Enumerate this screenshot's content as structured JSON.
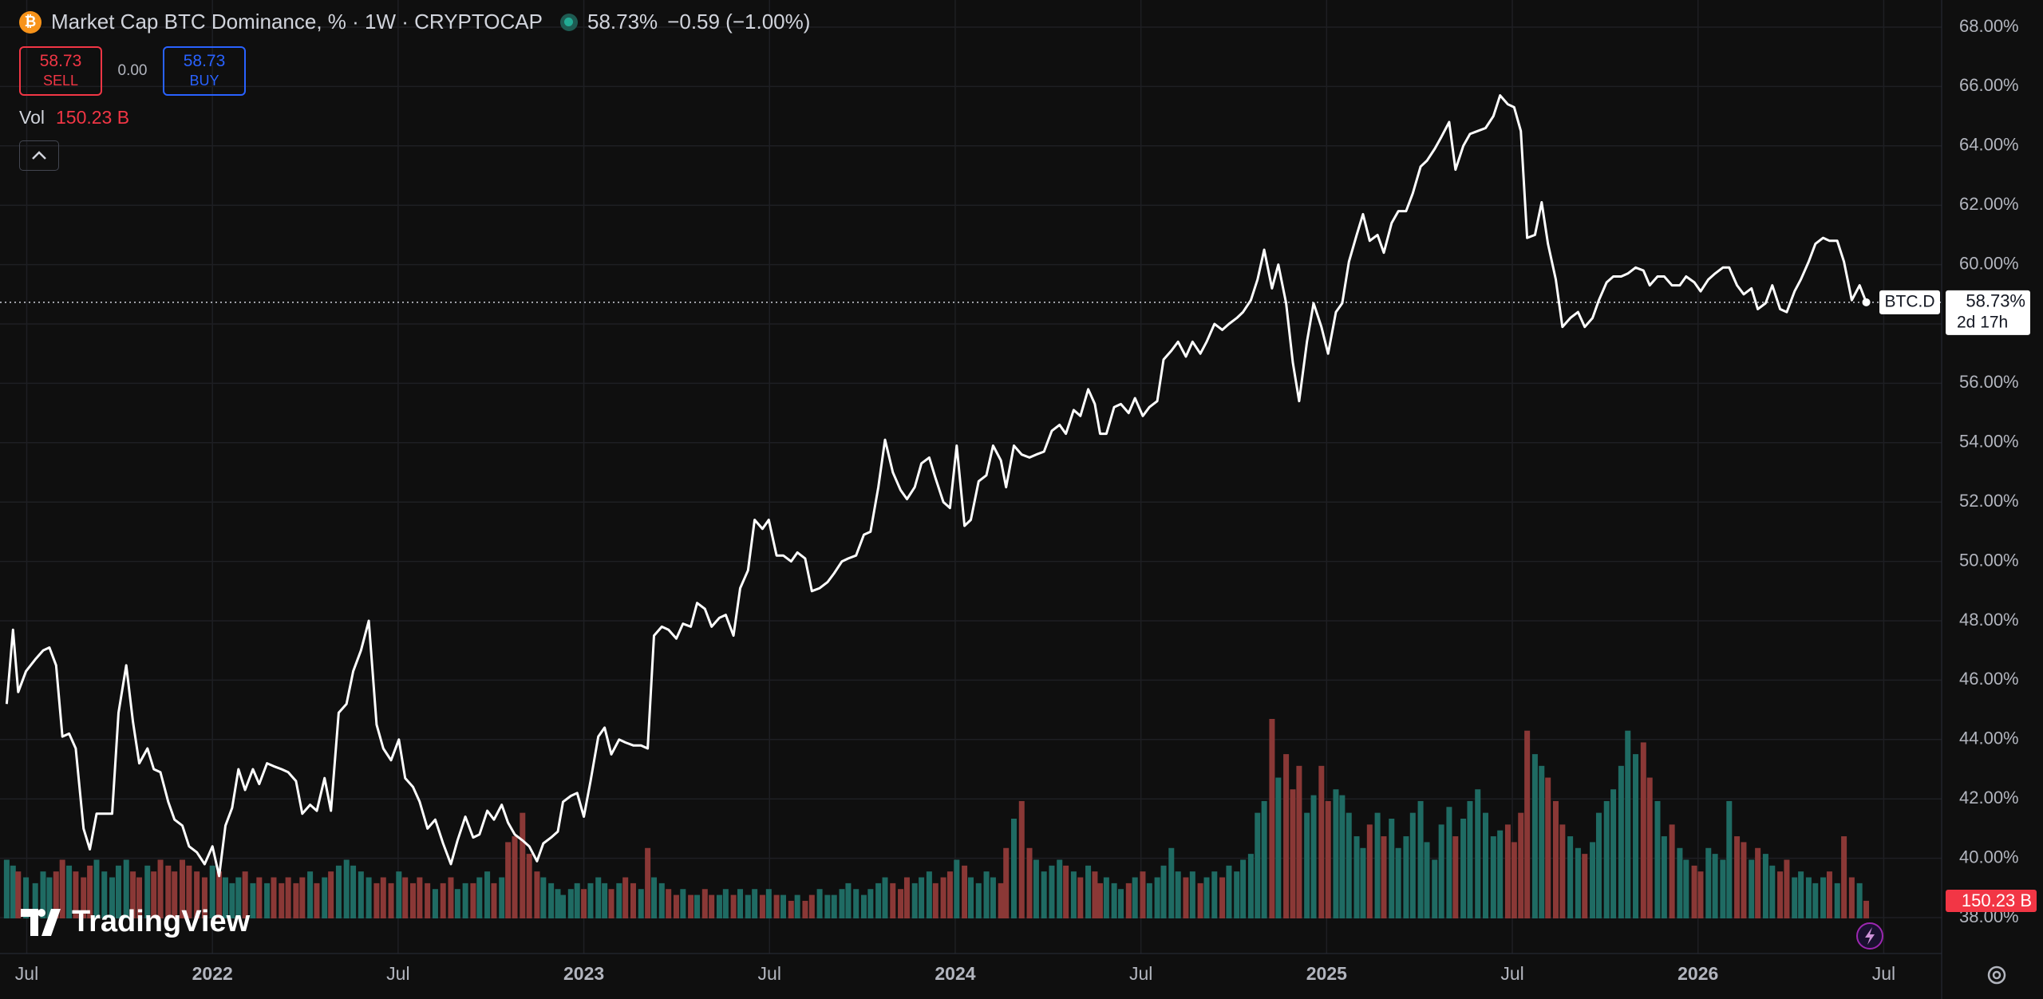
{
  "header": {
    "title": "Market Cap BTC Dominance, % · 1W · CRYPTOCAP",
    "price": "58.73%",
    "change": "−0.59 (−1.00%)",
    "sell_price": "58.73",
    "sell_label": "SELL",
    "spread": "0.00",
    "buy_price": "58.73",
    "buy_label": "BUY",
    "volume_label": "Vol",
    "volume_value": "150.23 B",
    "brand": "TradingView"
  },
  "chart_data": {
    "type": "line",
    "x": [
      2021.446,
      2021.463,
      2021.477,
      2021.498,
      2021.523,
      2021.544,
      2021.561,
      2021.579,
      2021.596,
      2021.614,
      2021.632,
      2021.653,
      2021.67,
      2021.688,
      2021.709,
      2021.73,
      2021.747,
      2021.768,
      2021.786,
      2021.803,
      2021.825,
      2021.842,
      2021.86,
      2021.881,
      2021.898,
      2021.919,
      2021.937,
      2021.958,
      2021.979,
      2022.0,
      2022.018,
      2022.035,
      2022.053,
      2022.07,
      2022.088,
      2022.109,
      2022.126,
      2022.147,
      2022.165,
      2022.186,
      2022.204,
      2022.225,
      2022.242,
      2022.263,
      2022.281,
      2022.302,
      2022.319,
      2022.34,
      2022.361,
      2022.379,
      2022.4,
      2022.421,
      2022.442,
      2022.46,
      2022.481,
      2022.502,
      2022.519,
      2022.54,
      2022.558,
      2022.579,
      2022.6,
      2022.621,
      2022.642,
      2022.66,
      2022.681,
      2022.702,
      2022.719,
      2022.74,
      2022.758,
      2022.779,
      2022.796,
      2022.814,
      2022.835,
      2022.853,
      2022.874,
      2022.891,
      2022.912,
      2022.93,
      2022.944,
      2022.965,
      2022.982,
      2023.0,
      2023.018,
      2023.039,
      2023.056,
      2023.074,
      2023.095,
      2023.112,
      2023.133,
      2023.154,
      2023.172,
      2023.189,
      2023.21,
      2023.228,
      2023.249,
      2023.267,
      2023.288,
      2023.305,
      2023.326,
      2023.344,
      2023.365,
      2023.382,
      2023.403,
      2023.421,
      2023.442,
      2023.46,
      2023.481,
      2023.498,
      2023.519,
      2023.537,
      2023.558,
      2023.575,
      2023.596,
      2023.614,
      2023.635,
      2023.656,
      2023.674,
      2023.695,
      2023.712,
      2023.733,
      2023.754,
      2023.772,
      2023.793,
      2023.811,
      2023.832,
      2023.853,
      2023.87,
      2023.891,
      2023.909,
      2023.93,
      2023.947,
      2023.968,
      2023.986,
      2024.004,
      2024.025,
      2024.042,
      2024.063,
      2024.084,
      2024.102,
      2024.123,
      2024.137,
      2024.158,
      2024.179,
      2024.2,
      2024.218,
      2024.239,
      2024.26,
      2024.281,
      2024.298,
      2024.319,
      2024.337,
      2024.358,
      2024.376,
      2024.39,
      2024.407,
      2024.428,
      2024.446,
      2024.467,
      2024.484,
      2024.505,
      2024.523,
      2024.544,
      2024.561,
      2024.582,
      2024.6,
      2024.621,
      2024.639,
      2024.66,
      2024.677,
      2024.698,
      2024.719,
      2024.737,
      2024.758,
      2024.775,
      2024.796,
      2024.814,
      2024.832,
      2024.853,
      2024.87,
      2024.891,
      2024.909,
      2024.926,
      2024.947,
      2024.965,
      2024.986,
      2025.004,
      2025.025,
      2025.042,
      2025.06,
      2025.081,
      2025.098,
      2025.116,
      2025.137,
      2025.154,
      2025.175,
      2025.193,
      2025.214,
      2025.232,
      2025.253,
      2025.27,
      2025.291,
      2025.309,
      2025.33,
      2025.347,
      2025.368,
      2025.386,
      2025.407,
      2025.428,
      2025.449,
      2025.467,
      2025.488,
      2025.505,
      2025.523,
      2025.54,
      2025.561,
      2025.579,
      2025.596,
      2025.617,
      2025.635,
      2025.656,
      2025.677,
      2025.695,
      2025.716,
      2025.733,
      2025.754,
      2025.772,
      2025.793,
      2025.811,
      2025.832,
      2025.853,
      2025.87,
      2025.891,
      2025.909,
      2025.93,
      2025.951,
      2025.968,
      2025.99,
      2026.007,
      2026.028,
      2026.046,
      2026.067,
      2026.084,
      2026.105,
      2026.123,
      2026.144,
      2026.161,
      2026.182,
      2026.2,
      2026.221,
      2026.239,
      2026.26,
      2026.277,
      2026.298,
      2026.316,
      2026.337,
      2026.354,
      2026.375,
      2026.393,
      2026.414,
      2026.435,
      2026.453
    ],
    "series": [
      {
        "name": "BTC.D",
        "color": "#ffffff",
        "values": [
          45.2,
          47.7,
          45.6,
          46.3,
          46.7,
          47.0,
          47.1,
          46.5,
          44.1,
          44.2,
          43.7,
          41.0,
          40.3,
          41.5,
          41.5,
          41.5,
          44.9,
          46.5,
          44.6,
          43.2,
          43.7,
          43.0,
          42.9,
          41.9,
          41.3,
          41.1,
          40.4,
          40.2,
          39.8,
          40.4,
          39.4,
          41.1,
          41.7,
          43.0,
          42.3,
          43.0,
          42.5,
          43.2,
          43.1,
          43.0,
          42.9,
          42.6,
          41.5,
          41.8,
          41.6,
          42.7,
          41.6,
          44.9,
          45.2,
          46.3,
          47.0,
          48.0,
          44.5,
          43.7,
          43.3,
          44.0,
          42.7,
          42.4,
          41.9,
          41.0,
          41.3,
          40.5,
          39.8,
          40.6,
          41.4,
          40.7,
          40.8,
          41.6,
          41.3,
          41.8,
          41.2,
          40.8,
          40.6,
          40.4,
          39.9,
          40.5,
          40.7,
          40.9,
          41.9,
          42.1,
          42.2,
          41.4,
          42.6,
          44.1,
          44.4,
          43.5,
          44.0,
          43.9,
          43.8,
          43.8,
          43.7,
          47.5,
          47.8,
          47.7,
          47.4,
          47.9,
          47.8,
          48.6,
          48.4,
          47.8,
          48.1,
          48.2,
          47.5,
          49.1,
          49.7,
          51.4,
          51.1,
          51.4,
          50.2,
          50.2,
          50.0,
          50.3,
          50.1,
          49.0,
          49.1,
          49.3,
          49.6,
          50.0,
          50.1,
          50.2,
          50.9,
          51.0,
          52.5,
          54.1,
          53.0,
          52.4,
          52.1,
          52.5,
          53.3,
          53.5,
          52.8,
          52.0,
          51.8,
          53.9,
          51.2,
          51.4,
          52.7,
          52.9,
          53.9,
          53.4,
          52.5,
          53.9,
          53.6,
          53.5,
          53.6,
          53.7,
          54.4,
          54.6,
          54.3,
          55.1,
          54.9,
          55.8,
          55.3,
          54.3,
          54.3,
          55.2,
          55.3,
          55.0,
          55.5,
          54.9,
          55.2,
          55.4,
          56.8,
          57.1,
          57.4,
          56.9,
          57.4,
          57.0,
          57.4,
          58.0,
          57.8,
          58.0,
          58.2,
          58.4,
          58.8,
          59.5,
          60.5,
          59.2,
          60.0,
          58.7,
          56.7,
          55.4,
          57.4,
          58.7,
          57.9,
          57.0,
          58.4,
          58.7,
          60.1,
          61.0,
          61.7,
          60.8,
          61.0,
          60.4,
          61.4,
          61.8,
          61.8,
          62.4,
          63.3,
          63.5,
          63.9,
          64.3,
          64.8,
          63.2,
          64.0,
          64.4,
          64.5,
          64.6,
          65.0,
          65.7,
          65.4,
          65.3,
          64.5,
          60.9,
          61.0,
          62.1,
          60.7,
          59.5,
          57.9,
          58.2,
          58.4,
          57.9,
          58.2,
          58.8,
          59.4,
          59.6,
          59.6,
          59.7,
          59.9,
          59.8,
          59.3,
          59.6,
          59.6,
          59.3,
          59.3,
          59.6,
          59.4,
          59.1,
          59.5,
          59.7,
          59.9,
          59.9,
          59.3,
          59.0,
          59.2,
          58.5,
          58.7,
          59.3,
          58.5,
          58.4,
          59.1,
          59.5,
          60.1,
          60.7,
          60.9,
          60.8,
          60.8,
          60.1,
          58.8,
          59.3,
          58.73
        ]
      },
      {
        "name": "Vol",
        "type": "bar",
        "up_color": "#1f6b63",
        "down_color": "#8a3836",
        "values": [
          500,
          450,
          400,
          350,
          300,
          400,
          350,
          400,
          500,
          450,
          400,
          350,
          450,
          500,
          400,
          350,
          450,
          500,
          400,
          350,
          450,
          400,
          500,
          450,
          400,
          500,
          450,
          400,
          350,
          450,
          400,
          350,
          300,
          350,
          400,
          300,
          350,
          300,
          350,
          300,
          350,
          300,
          350,
          400,
          300,
          350,
          400,
          450,
          500,
          450,
          400,
          350,
          300,
          350,
          300,
          400,
          350,
          300,
          350,
          300,
          250,
          300,
          350,
          250,
          300,
          300,
          350,
          400,
          300,
          350,
          650,
          700,
          900,
          550,
          400,
          350,
          300,
          250,
          200,
          250,
          300,
          250,
          300,
          350,
          300,
          250,
          300,
          350,
          300,
          250,
          600,
          350,
          300,
          250,
          200,
          250,
          200,
          200,
          250,
          200,
          200,
          250,
          200,
          250,
          200,
          250,
          200,
          250,
          200,
          200,
          150,
          200,
          150,
          200,
          250,
          200,
          200,
          250,
          300,
          250,
          200,
          250,
          300,
          350,
          300,
          250,
          350,
          300,
          350,
          400,
          300,
          350,
          400,
          500,
          450,
          350,
          300,
          400,
          350,
          300,
          600,
          850,
          1000,
          600,
          500,
          400,
          450,
          500,
          450,
          400,
          350,
          450,
          400,
          300,
          350,
          300,
          250,
          300,
          350,
          400,
          300,
          350,
          450,
          600,
          400,
          350,
          400,
          300,
          350,
          400,
          350,
          450,
          400,
          500,
          550,
          900,
          1000,
          1700,
          1200,
          1400,
          1100,
          1300,
          900,
          1050,
          1300,
          1000,
          1100,
          1050,
          900,
          700,
          600,
          800,
          900,
          700,
          850,
          600,
          700,
          900,
          1000,
          650,
          500,
          800,
          950,
          700,
          850,
          1000,
          1100,
          900,
          700,
          750,
          800,
          650,
          900,
          1600,
          1400,
          1300,
          1200,
          1000,
          800,
          700,
          600,
          550,
          650,
          900,
          1000,
          1100,
          1300,
          1600,
          1400,
          1500,
          1200,
          1000,
          700,
          800,
          600,
          500,
          450,
          400,
          600,
          550,
          500,
          1000,
          700,
          650,
          500,
          600,
          550,
          450,
          400,
          500,
          350,
          400,
          350,
          300,
          350,
          400,
          300,
          700,
          350,
          300,
          150.23
        ]
      }
    ],
    "last_label": "58.73%",
    "countdown": "2d 17h",
    "xlim": [
      2021.428,
      2026.656
    ],
    "xticks": [
      {
        "value": 2021.5,
        "label": "Jul"
      },
      2022,
      {
        "value": 2022.5,
        "label": "Jul"
      },
      2023,
      {
        "value": 2023.5,
        "label": "Jul"
      },
      2024,
      {
        "value": 2024.5,
        "label": "Jul"
      },
      2025,
      {
        "value": 2025.5,
        "label": "Jul"
      },
      2026,
      {
        "value": 2026.5,
        "label": "Jul"
      }
    ],
    "ylim": [
      38,
      68
    ],
    "yticks": [
      {
        "value": 38,
        "label": "38.00%"
      },
      {
        "value": 40,
        "label": "40.00%"
      },
      {
        "value": 42,
        "label": "42.00%"
      },
      {
        "value": 44,
        "label": "44.00%"
      },
      {
        "value": 46,
        "label": "46.00%"
      },
      {
        "value": 48,
        "label": "48.00%"
      },
      {
        "value": 50,
        "label": "50.00%"
      },
      {
        "value": 52,
        "label": "52.00%"
      },
      {
        "value": 54,
        "label": "54.00%"
      },
      {
        "value": 56,
        "label": "56.00%"
      },
      {
        "value": 58,
        "label": "58.00%"
      },
      {
        "value": 60,
        "label": "60.00%"
      },
      {
        "value": 62,
        "label": "62.00%"
      },
      {
        "value": 64,
        "label": "64.00%"
      },
      {
        "value": 66,
        "label": "66.00%"
      },
      {
        "value": 68,
        "label": "68.00%"
      }
    ],
    "grid": true
  }
}
